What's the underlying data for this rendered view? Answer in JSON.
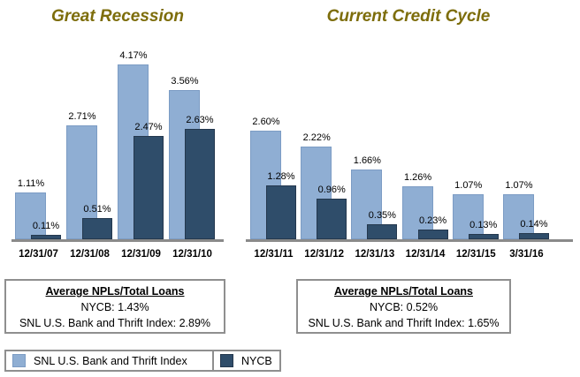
{
  "chart_data": [
    {
      "type": "bar",
      "title": "Great Recession",
      "categories": [
        "12/31/07",
        "12/31/08",
        "12/31/09",
        "12/31/10"
      ],
      "series": [
        {
          "name": "SNL U.S. Bank and Thrift Index",
          "color": "#8FAED3",
          "values": [
            1.11,
            2.71,
            4.17,
            3.56
          ]
        },
        {
          "name": "NYCB",
          "color": "#2F4D6A",
          "values": [
            0.11,
            0.51,
            2.47,
            2.63
          ]
        }
      ],
      "value_suffix": "%",
      "xlabel": "",
      "ylabel": "",
      "ylim": [
        0,
        4.5
      ],
      "grid": false,
      "data_labels": true,
      "legend_position": "bottom"
    },
    {
      "type": "bar",
      "title": "Current Credit Cycle",
      "categories": [
        "12/31/11",
        "12/31/12",
        "12/31/13",
        "12/31/14",
        "12/31/15",
        "3/31/16"
      ],
      "series": [
        {
          "name": "SNL U.S. Bank and Thrift Index",
          "color": "#8FAED3",
          "values": [
            2.6,
            2.22,
            1.66,
            1.26,
            1.07,
            1.07
          ]
        },
        {
          "name": "NYCB",
          "color": "#2F4D6A",
          "values": [
            1.28,
            0.96,
            0.35,
            0.23,
            0.13,
            0.14
          ]
        }
      ],
      "value_suffix": "%",
      "xlabel": "",
      "ylabel": "",
      "ylim": [
        0,
        4.5
      ],
      "grid": false,
      "data_labels": true,
      "legend_position": "bottom"
    }
  ],
  "summary_boxes": [
    {
      "heading": "Average NPLs/Total Loans",
      "lines": [
        "NYCB: 1.43%",
        "SNL U.S. Bank and Thrift Index: 2.89%"
      ]
    },
    {
      "heading": "Average NPLs/Total Loans",
      "lines": [
        "NYCB: 0.52%",
        "SNL U.S. Bank and Thrift Index: 1.65%"
      ]
    }
  ],
  "legend": {
    "items": [
      {
        "label": "SNL U.S. Bank and Thrift Index",
        "color": "#8FAED3",
        "border": "#7C9CC4"
      },
      {
        "label": "NYCB",
        "color": "#2F4D6A",
        "border": "#24384E"
      }
    ]
  },
  "colors": {
    "title_text": "#7D6D0B",
    "snl_bar": "#8FAED3",
    "nycb_bar": "#2F4D6A",
    "axis_line": "#8A8A8A",
    "box_border": "#8F8F8F"
  }
}
